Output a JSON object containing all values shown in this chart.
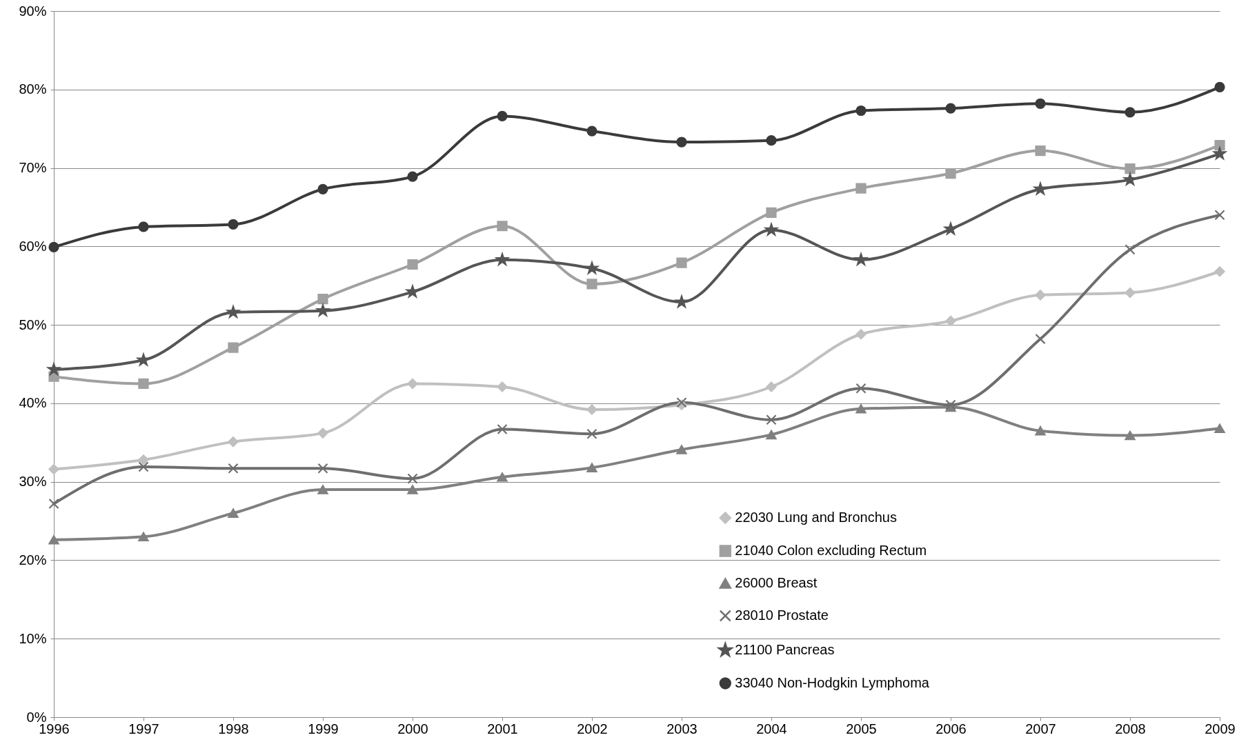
{
  "chart_data": {
    "type": "line",
    "x": [
      1996,
      1997,
      1998,
      1999,
      2000,
      2001,
      2002,
      2003,
      2004,
      2005,
      2006,
      2007,
      2008,
      2009
    ],
    "xlim": [
      1996,
      2009
    ],
    "xticks": [
      1996,
      1997,
      1998,
      1999,
      2000,
      2001,
      2002,
      2003,
      2004,
      2005,
      2006,
      2007,
      2008,
      2009
    ],
    "ylim": [
      0,
      90
    ],
    "yticks": [
      {
        "value": 0,
        "label": "0%"
      },
      {
        "value": 10,
        "label": "10%"
      },
      {
        "value": 20,
        "label": "20%"
      },
      {
        "value": 30,
        "label": "30%"
      },
      {
        "value": 40,
        "label": "40%"
      },
      {
        "value": 50,
        "label": "50%"
      },
      {
        "value": 60,
        "label": "60%"
      },
      {
        "value": 70,
        "label": "70%"
      },
      {
        "value": 80,
        "label": "80%"
      },
      {
        "value": 90,
        "label": "90%"
      }
    ],
    "grid": "y",
    "legend": "bottom right",
    "line_style": "solid",
    "series": [
      {
        "name": "22030 Lung and Bronchus",
        "color": "#c0c0c0",
        "marker": "diamond",
        "values": [
          31.6,
          32.8,
          35.1,
          36.2,
          42.5,
          42.1,
          39.2,
          39.8,
          42.1,
          48.8,
          50.5,
          53.8,
          54.1,
          56.8
        ]
      },
      {
        "name": "21040 Colon excluding Rectum",
        "color": "#a0a0a0",
        "marker": "square",
        "values": [
          43.4,
          42.5,
          47.1,
          53.3,
          57.7,
          62.6,
          55.2,
          57.9,
          64.3,
          67.4,
          69.3,
          72.2,
          69.9,
          72.9
        ]
      },
      {
        "name": "26000 Breast",
        "color": "#808080",
        "marker": "triangle",
        "values": [
          22.6,
          23.0,
          26.0,
          29.0,
          29.0,
          30.6,
          31.8,
          34.1,
          36.0,
          39.3,
          39.5,
          36.5,
          35.9,
          36.8
        ]
      },
      {
        "name": "28010 Prostate",
        "color": "#6e6e6e",
        "marker": "cross",
        "values": [
          27.2,
          31.9,
          31.7,
          31.7,
          30.4,
          36.7,
          36.1,
          40.1,
          37.9,
          41.9,
          39.8,
          48.2,
          59.6,
          64.0
        ]
      },
      {
        "name": "21100 Pancreas",
        "color": "#555555",
        "marker": "star",
        "values": [
          44.3,
          45.5,
          51.6,
          51.8,
          54.2,
          58.3,
          57.2,
          52.9,
          62.1,
          58.3,
          62.2,
          67.3,
          68.5,
          71.8
        ]
      },
      {
        "name": "33040 Non-Hodgkin Lymphoma",
        "color": "#3a3a3a",
        "marker": "circle",
        "values": [
          59.9,
          62.5,
          62.8,
          67.3,
          68.9,
          76.6,
          74.7,
          73.3,
          73.5,
          77.3,
          77.6,
          78.2,
          77.1,
          80.3
        ]
      }
    ]
  }
}
